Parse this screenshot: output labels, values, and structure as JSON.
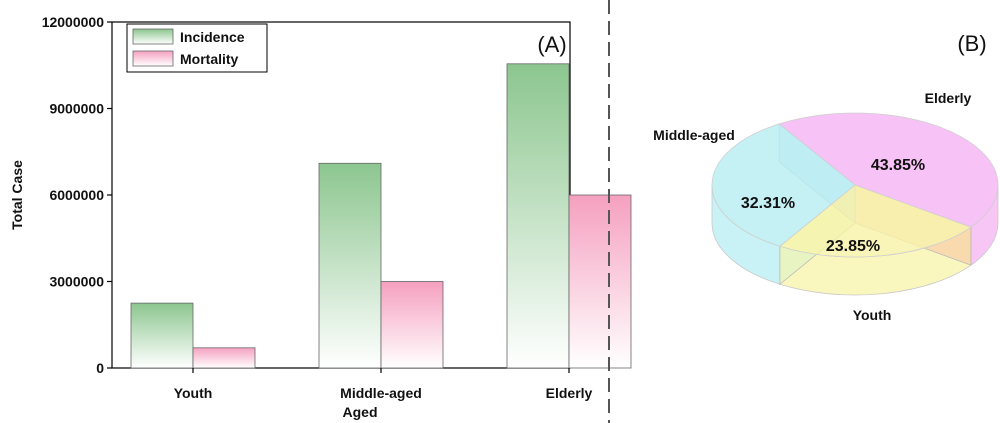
{
  "divider_color": "#555555",
  "chart_data": [
    {
      "type": "bar",
      "panel_label": "(A)",
      "categories": [
        "Youth",
        "Middle-aged\nAged",
        "Elderly"
      ],
      "ylabel": "Total Case",
      "ylim": [
        0,
        12000000
      ],
      "yticks": [
        0,
        3000000,
        6000000,
        9000000,
        12000000
      ],
      "legend_position": "top-left",
      "series": [
        {
          "name": "Incidence",
          "values": [
            2250000,
            7100000,
            10550000
          ],
          "color": "#8cc68f"
        },
        {
          "name": "Mortality",
          "values": [
            700000,
            3000000,
            6000000
          ],
          "color": "#f5a0bf"
        }
      ]
    },
    {
      "type": "pie",
      "style": "3d",
      "panel_label": "(B)",
      "slices": [
        {
          "name": "Middle-aged",
          "value": 32.31,
          "label": "32.31%",
          "color": "#b6eef2"
        },
        {
          "name": "Elderly",
          "value": 43.85,
          "label": "43.85%",
          "color": "#f5b3f2"
        },
        {
          "name": "Youth",
          "value": 23.85,
          "label": "23.85%",
          "color": "#f7f3a8"
        }
      ]
    }
  ]
}
